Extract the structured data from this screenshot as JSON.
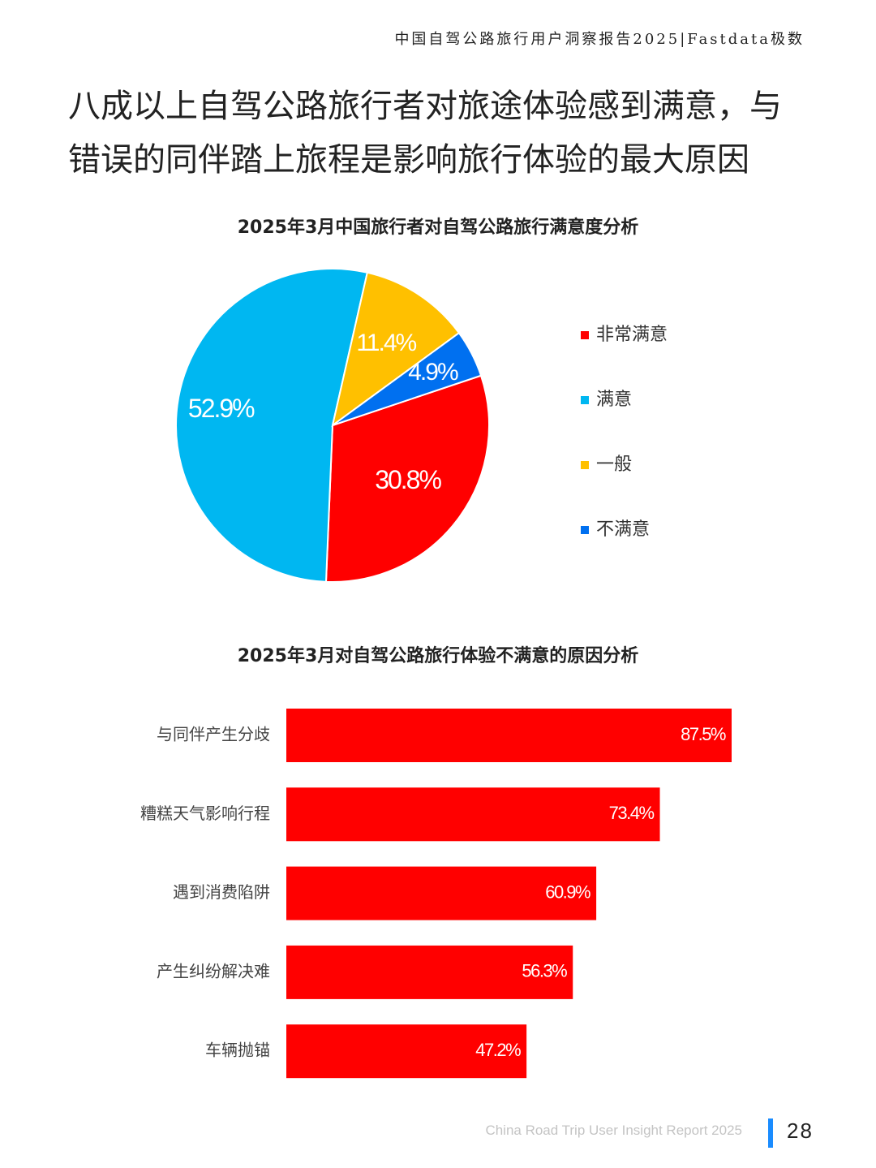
{
  "header": "中国自驾公路旅行用户洞察报告2025|Fastdata极数",
  "headline": {
    "line1": "八成以上自驾公路旅行者对旅途体验感到满意，与",
    "line2": "错误的同伴踏上旅程是影响旅行体验的最大原因"
  },
  "chart_data": [
    {
      "type": "pie",
      "title": "2025年3月中国旅行者对自驾公路旅行满意度分析",
      "legend_position": "right",
      "slices": [
        {
          "label": "非常满意",
          "value": 30.8,
          "display": "30.8%",
          "color": "#ff0000"
        },
        {
          "label": "满意",
          "value": 52.9,
          "display": "52.9%",
          "color": "#00b7f1"
        },
        {
          "label": "一般",
          "value": 11.4,
          "display": "11.4%",
          "color": "#ffc000"
        },
        {
          "label": "不满意",
          "value": 4.9,
          "display": "4.9%",
          "color": "#0070f0"
        }
      ]
    },
    {
      "type": "bar",
      "orientation": "horizontal",
      "title": "2025年3月对自驾公路旅行体验不满意的原因分析",
      "color": "#ff0000",
      "categories": [
        "与同伴产生分歧",
        "糟糕天气影响行程",
        "遇到消费陷阱",
        "产生纠纷解决难",
        "车辆抛锚"
      ],
      "values": [
        87.5,
        73.4,
        60.9,
        56.3,
        47.2
      ],
      "display": [
        "87.5%",
        "73.4%",
        "60.9%",
        "56.3%",
        "47.2%"
      ],
      "xlim": [
        0,
        100
      ],
      "grid": false
    }
  ],
  "footer": {
    "text": "China Road Trip User Insight Report 2025",
    "page": "28",
    "accent": "#1a8cff"
  }
}
